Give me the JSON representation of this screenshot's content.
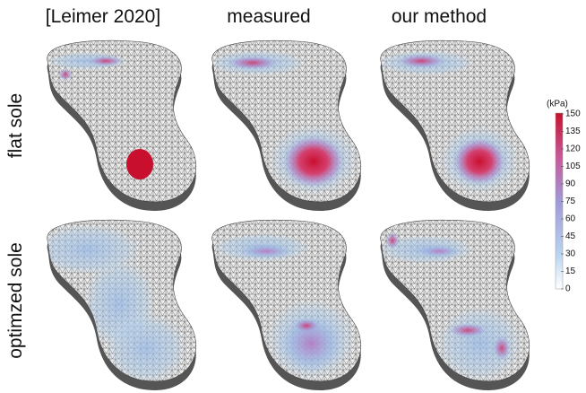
{
  "columns": [
    "[Leimer 2020]",
    "measured",
    "our method"
  ],
  "rows": [
    "flat sole",
    "optimzed sole"
  ],
  "colorbar": {
    "unit": "(kPa)",
    "ticks": [
      0,
      15,
      30,
      45,
      60,
      75,
      90,
      105,
      120,
      135,
      150
    ]
  }
}
